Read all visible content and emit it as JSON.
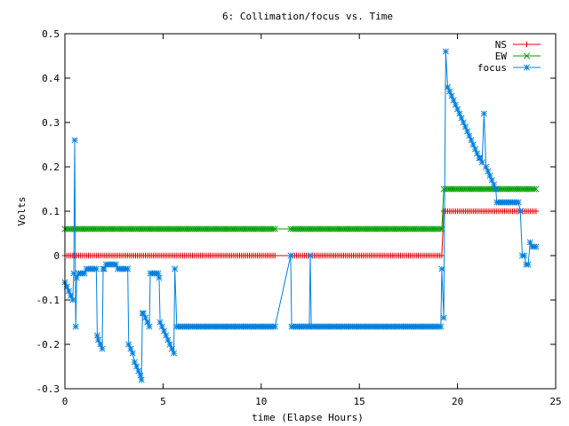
{
  "chart_data": {
    "type": "line",
    "title": "6: Collimation/focus vs. Time",
    "xlabel": "time (Elapse Hours)",
    "ylabel": "Volts",
    "xlim": [
      0,
      25
    ],
    "ylim": [
      -0.3,
      0.5
    ],
    "x_ticks": [
      0,
      5,
      10,
      15,
      20,
      25
    ],
    "x_tick_labels": [
      "0",
      "5",
      "10",
      "15",
      "20",
      "25"
    ],
    "y_ticks": [
      -0.3,
      -0.2,
      -0.1,
      0,
      0.1,
      0.2,
      0.3,
      0.4,
      0.5
    ],
    "y_tick_labels": [
      "-0.3",
      "-0.2",
      "-0.1",
      "0",
      "0.1",
      "0.2",
      "0.3",
      "0.4",
      "0.5"
    ],
    "legend_position": "top-right",
    "series": [
      {
        "name": "NS",
        "color": "#e00000",
        "marker": "plus",
        "segments": [
          {
            "x_from": 0.0,
            "x_to": 10.7,
            "step": 0.1,
            "y": 0.0
          },
          {
            "x_from": 11.5,
            "x_to": 19.2,
            "step": 0.1,
            "y": 0.0
          },
          {
            "x_from": 19.3,
            "x_to": 24.0,
            "step": 0.1,
            "y": 0.1
          }
        ]
      },
      {
        "name": "EW",
        "color": "#00a000",
        "marker": "cross",
        "segments": [
          {
            "x_from": 0.0,
            "x_to": 10.7,
            "step": 0.1,
            "y": 0.06
          },
          {
            "x_from": 11.5,
            "x_to": 19.2,
            "step": 0.1,
            "y": 0.06
          },
          {
            "x_from": 19.3,
            "x_to": 24.0,
            "step": 0.1,
            "y": 0.15
          }
        ]
      },
      {
        "name": "focus",
        "color": "#0080e0",
        "marker": "star",
        "points": [
          [
            0.0,
            -0.06
          ],
          [
            0.1,
            -0.07
          ],
          [
            0.2,
            -0.08
          ],
          [
            0.3,
            -0.09
          ],
          [
            0.4,
            -0.1
          ],
          [
            0.45,
            -0.04
          ],
          [
            0.5,
            0.26
          ],
          [
            0.55,
            -0.16
          ],
          [
            0.6,
            -0.05
          ],
          [
            0.7,
            -0.04
          ],
          [
            0.8,
            -0.04
          ],
          [
            0.9,
            -0.04
          ],
          [
            1.0,
            -0.04
          ],
          [
            1.1,
            -0.03
          ],
          [
            1.2,
            -0.03
          ],
          [
            1.3,
            -0.03
          ],
          [
            1.4,
            -0.03
          ],
          [
            1.5,
            -0.03
          ],
          [
            1.6,
            -0.03
          ],
          [
            1.65,
            -0.18
          ],
          [
            1.7,
            -0.19
          ],
          [
            1.8,
            -0.2
          ],
          [
            1.9,
            -0.21
          ],
          [
            1.95,
            -0.03
          ],
          [
            2.0,
            -0.03
          ],
          [
            2.1,
            -0.02
          ],
          [
            2.2,
            -0.02
          ],
          [
            2.3,
            -0.02
          ],
          [
            2.4,
            -0.02
          ],
          [
            2.5,
            -0.02
          ],
          [
            2.6,
            -0.02
          ],
          [
            2.7,
            -0.03
          ],
          [
            2.8,
            -0.03
          ],
          [
            2.9,
            -0.03
          ],
          [
            3.0,
            -0.03
          ],
          [
            3.1,
            -0.03
          ],
          [
            3.2,
            -0.03
          ],
          [
            3.25,
            -0.2
          ],
          [
            3.35,
            -0.21
          ],
          [
            3.45,
            -0.22
          ],
          [
            3.55,
            -0.24
          ],
          [
            3.65,
            -0.25
          ],
          [
            3.75,
            -0.26
          ],
          [
            3.85,
            -0.27
          ],
          [
            3.9,
            -0.28
          ],
          [
            3.95,
            -0.13
          ],
          [
            4.0,
            -0.13
          ],
          [
            4.1,
            -0.14
          ],
          [
            4.2,
            -0.15
          ],
          [
            4.3,
            -0.16
          ],
          [
            4.35,
            -0.04
          ],
          [
            4.45,
            -0.04
          ],
          [
            4.55,
            -0.04
          ],
          [
            4.65,
            -0.04
          ],
          [
            4.75,
            -0.04
          ],
          [
            4.8,
            -0.05
          ],
          [
            4.85,
            -0.15
          ],
          [
            4.95,
            -0.16
          ],
          [
            5.05,
            -0.17
          ],
          [
            5.15,
            -0.18
          ],
          [
            5.25,
            -0.19
          ],
          [
            5.35,
            -0.2
          ],
          [
            5.45,
            -0.21
          ],
          [
            5.55,
            -0.22
          ],
          [
            5.6,
            -0.03
          ],
          [
            5.7,
            -0.16
          ],
          [
            5.8,
            -0.16
          ],
          [
            5.9,
            -0.16
          ],
          [
            6.0,
            -0.16
          ],
          [
            6.1,
            -0.16
          ],
          [
            6.2,
            -0.16
          ],
          [
            6.3,
            -0.16
          ],
          [
            6.4,
            -0.16
          ],
          [
            6.5,
            -0.16
          ],
          [
            6.6,
            -0.16
          ],
          [
            6.7,
            -0.16
          ],
          [
            6.8,
            -0.16
          ],
          [
            6.9,
            -0.16
          ],
          [
            7.0,
            -0.16
          ],
          [
            7.1,
            -0.16
          ],
          [
            7.2,
            -0.16
          ],
          [
            7.3,
            -0.16
          ],
          [
            7.4,
            -0.16
          ],
          [
            7.5,
            -0.16
          ],
          [
            7.6,
            -0.16
          ],
          [
            7.7,
            -0.16
          ],
          [
            7.8,
            -0.16
          ],
          [
            7.9,
            -0.16
          ],
          [
            8.0,
            -0.16
          ],
          [
            8.1,
            -0.16
          ],
          [
            8.2,
            -0.16
          ],
          [
            8.3,
            -0.16
          ],
          [
            8.4,
            -0.16
          ],
          [
            8.5,
            -0.16
          ],
          [
            8.6,
            -0.16
          ],
          [
            8.7,
            -0.16
          ],
          [
            8.8,
            -0.16
          ],
          [
            8.9,
            -0.16
          ],
          [
            9.0,
            -0.16
          ],
          [
            9.1,
            -0.16
          ],
          [
            9.2,
            -0.16
          ],
          [
            9.3,
            -0.16
          ],
          [
            9.4,
            -0.16
          ],
          [
            9.5,
            -0.16
          ],
          [
            9.6,
            -0.16
          ],
          [
            9.7,
            -0.16
          ],
          [
            9.8,
            -0.16
          ],
          [
            9.9,
            -0.16
          ],
          [
            10.0,
            -0.16
          ],
          [
            10.1,
            -0.16
          ],
          [
            10.2,
            -0.16
          ],
          [
            10.3,
            -0.16
          ],
          [
            10.4,
            -0.16
          ],
          [
            10.5,
            -0.16
          ],
          [
            10.6,
            -0.16
          ],
          [
            10.7,
            -0.16
          ],
          [
            11.5,
            0.0
          ],
          [
            11.55,
            -0.16
          ],
          [
            11.65,
            -0.16
          ],
          [
            11.75,
            -0.16
          ],
          [
            11.85,
            -0.16
          ],
          [
            11.95,
            -0.16
          ],
          [
            12.05,
            -0.16
          ],
          [
            12.15,
            -0.16
          ],
          [
            12.25,
            -0.16
          ],
          [
            12.35,
            -0.16
          ],
          [
            12.45,
            -0.16
          ],
          [
            12.5,
            0.0
          ],
          [
            12.55,
            -0.16
          ],
          [
            12.65,
            -0.16
          ],
          [
            12.75,
            -0.16
          ],
          [
            12.85,
            -0.16
          ],
          [
            12.95,
            -0.16
          ],
          [
            13.05,
            -0.16
          ],
          [
            13.15,
            -0.16
          ],
          [
            13.25,
            -0.16
          ],
          [
            13.35,
            -0.16
          ],
          [
            13.45,
            -0.16
          ],
          [
            13.55,
            -0.16
          ],
          [
            13.65,
            -0.16
          ],
          [
            13.75,
            -0.16
          ],
          [
            13.85,
            -0.16
          ],
          [
            13.95,
            -0.16
          ],
          [
            14.05,
            -0.16
          ],
          [
            14.15,
            -0.16
          ],
          [
            14.25,
            -0.16
          ],
          [
            14.35,
            -0.16
          ],
          [
            14.45,
            -0.16
          ],
          [
            14.55,
            -0.16
          ],
          [
            14.65,
            -0.16
          ],
          [
            14.75,
            -0.16
          ],
          [
            14.85,
            -0.16
          ],
          [
            14.95,
            -0.16
          ],
          [
            15.05,
            -0.16
          ],
          [
            15.15,
            -0.16
          ],
          [
            15.25,
            -0.16
          ],
          [
            15.35,
            -0.16
          ],
          [
            15.45,
            -0.16
          ],
          [
            15.55,
            -0.16
          ],
          [
            15.65,
            -0.16
          ],
          [
            15.75,
            -0.16
          ],
          [
            15.85,
            -0.16
          ],
          [
            15.95,
            -0.16
          ],
          [
            16.05,
            -0.16
          ],
          [
            16.15,
            -0.16
          ],
          [
            16.25,
            -0.16
          ],
          [
            16.35,
            -0.16
          ],
          [
            16.45,
            -0.16
          ],
          [
            16.55,
            -0.16
          ],
          [
            16.65,
            -0.16
          ],
          [
            16.75,
            -0.16
          ],
          [
            16.85,
            -0.16
          ],
          [
            16.95,
            -0.16
          ],
          [
            17.05,
            -0.16
          ],
          [
            17.15,
            -0.16
          ],
          [
            17.25,
            -0.16
          ],
          [
            17.35,
            -0.16
          ],
          [
            17.45,
            -0.16
          ],
          [
            17.55,
            -0.16
          ],
          [
            17.65,
            -0.16
          ],
          [
            17.75,
            -0.16
          ],
          [
            17.85,
            -0.16
          ],
          [
            17.95,
            -0.16
          ],
          [
            18.05,
            -0.16
          ],
          [
            18.15,
            -0.16
          ],
          [
            18.25,
            -0.16
          ],
          [
            18.35,
            -0.16
          ],
          [
            18.45,
            -0.16
          ],
          [
            18.55,
            -0.16
          ],
          [
            18.65,
            -0.16
          ],
          [
            18.75,
            -0.16
          ],
          [
            18.85,
            -0.16
          ],
          [
            18.95,
            -0.16
          ],
          [
            19.05,
            -0.16
          ],
          [
            19.15,
            -0.16
          ],
          [
            19.2,
            -0.03
          ],
          [
            19.3,
            -0.14
          ],
          [
            19.4,
            0.46
          ],
          [
            19.5,
            0.38
          ],
          [
            19.6,
            0.37
          ],
          [
            19.7,
            0.36
          ],
          [
            19.8,
            0.35
          ],
          [
            19.9,
            0.34
          ],
          [
            20.0,
            0.33
          ],
          [
            20.1,
            0.32
          ],
          [
            20.2,
            0.31
          ],
          [
            20.3,
            0.3
          ],
          [
            20.4,
            0.29
          ],
          [
            20.5,
            0.28
          ],
          [
            20.6,
            0.27
          ],
          [
            20.7,
            0.26
          ],
          [
            20.8,
            0.25
          ],
          [
            20.9,
            0.24
          ],
          [
            21.0,
            0.23
          ],
          [
            21.1,
            0.22
          ],
          [
            21.15,
            0.22
          ],
          [
            21.25,
            0.21
          ],
          [
            21.35,
            0.32
          ],
          [
            21.45,
            0.2
          ],
          [
            21.55,
            0.19
          ],
          [
            21.65,
            0.18
          ],
          [
            21.75,
            0.17
          ],
          [
            21.85,
            0.16
          ],
          [
            21.95,
            0.15
          ],
          [
            22.0,
            0.12
          ],
          [
            22.1,
            0.12
          ],
          [
            22.2,
            0.12
          ],
          [
            22.3,
            0.12
          ],
          [
            22.4,
            0.12
          ],
          [
            22.5,
            0.12
          ],
          [
            22.6,
            0.12
          ],
          [
            22.7,
            0.12
          ],
          [
            22.8,
            0.12
          ],
          [
            22.9,
            0.12
          ],
          [
            23.0,
            0.12
          ],
          [
            23.1,
            0.12
          ],
          [
            23.2,
            0.1
          ],
          [
            23.3,
            0.0
          ],
          [
            23.4,
            0.0
          ],
          [
            23.5,
            -0.02
          ],
          [
            23.6,
            -0.02
          ],
          [
            23.7,
            0.03
          ],
          [
            23.8,
            0.02
          ],
          [
            23.9,
            0.02
          ],
          [
            24.0,
            0.02
          ]
        ]
      }
    ]
  }
}
